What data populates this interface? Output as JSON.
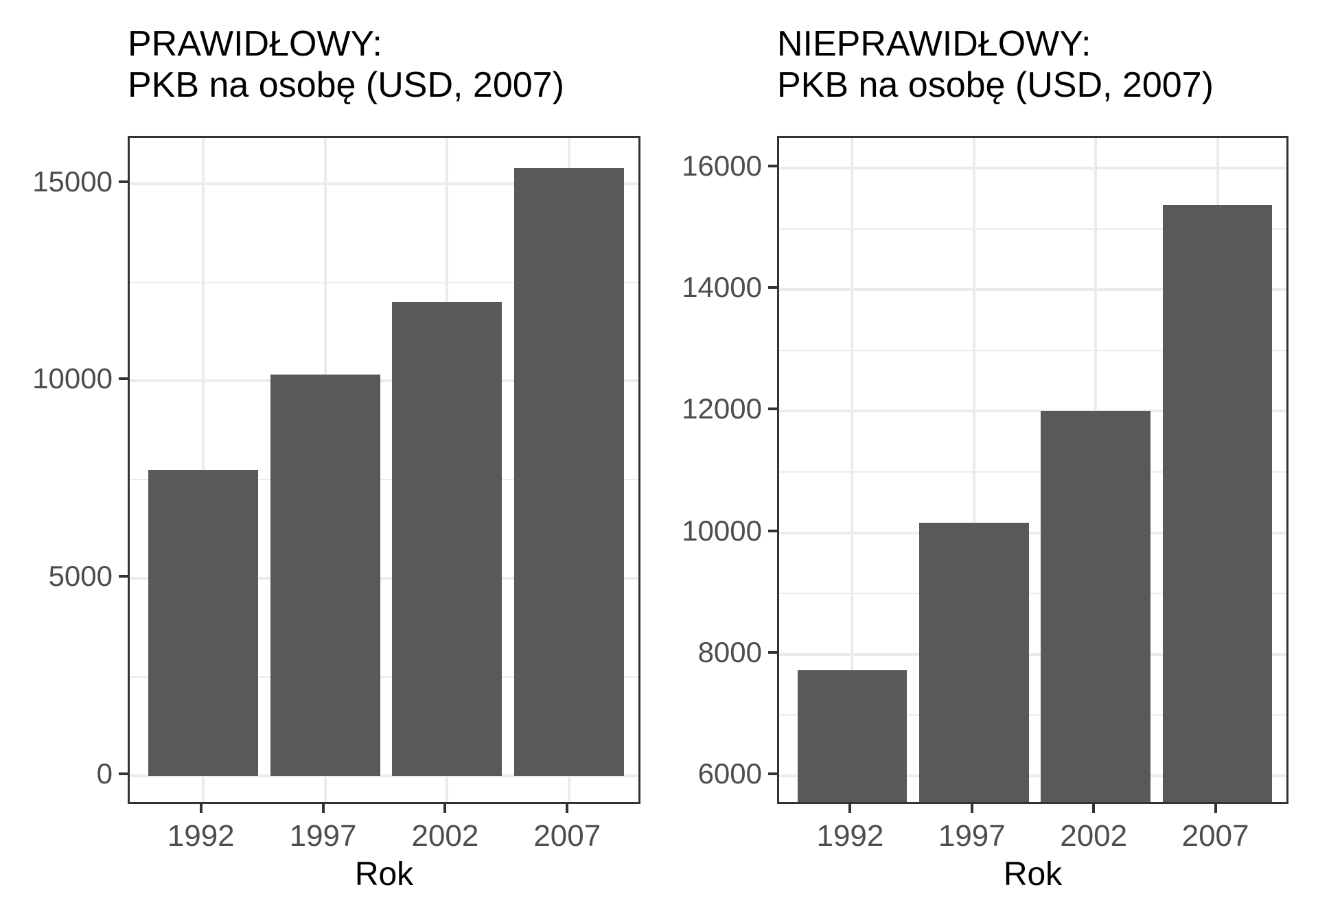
{
  "figure": {
    "background": "#FFFFFF"
  },
  "style": {
    "grid_color": "#EBEBEB",
    "panel_border_color": "#333333",
    "tick_mark_color": "#333333",
    "axis_text_color": "#4D4D4D",
    "title_color": "#000000"
  },
  "chart_data": [
    {
      "type": "bar",
      "title_line1": "PRAWIDŁOWY:",
      "title_line2": "PKB na osobę (USD, 2007)",
      "xlabel": "Rok",
      "ylabel": "",
      "categories": [
        "1992",
        "1997",
        "2002",
        "2007"
      ],
      "values": [
        7739,
        10160,
        12002,
        15390
      ],
      "bar_fill": "#595959",
      "bar_base": 0,
      "ylim": [
        -770,
        16160
      ],
      "yticks": [
        0,
        5000,
        10000,
        15000
      ],
      "yminorticks": [
        2500,
        7500,
        12500
      ],
      "grid": "on",
      "legend": "none",
      "axis_note": "y axis starts at zero (correct)"
    },
    {
      "type": "bar",
      "title_line1": "NIEPRAWIDŁOWY:",
      "title_line2": "PKB na osobę (USD, 2007)",
      "xlabel": "Rok",
      "ylabel": "",
      "categories": [
        "1992",
        "1997",
        "2002",
        "2007"
      ],
      "values": [
        7739,
        10160,
        12002,
        15390
      ],
      "bar_fill": "#595959",
      "bar_base": 0,
      "ylim": [
        5500,
        16500
      ],
      "yticks": [
        6000,
        8000,
        10000,
        12000,
        14000,
        16000
      ],
      "yminorticks": [
        7000,
        9000,
        11000,
        13000,
        15000
      ],
      "grid": "on",
      "legend": "none",
      "axis_note": "y axis truncated, bars cut off (incorrect)"
    }
  ]
}
